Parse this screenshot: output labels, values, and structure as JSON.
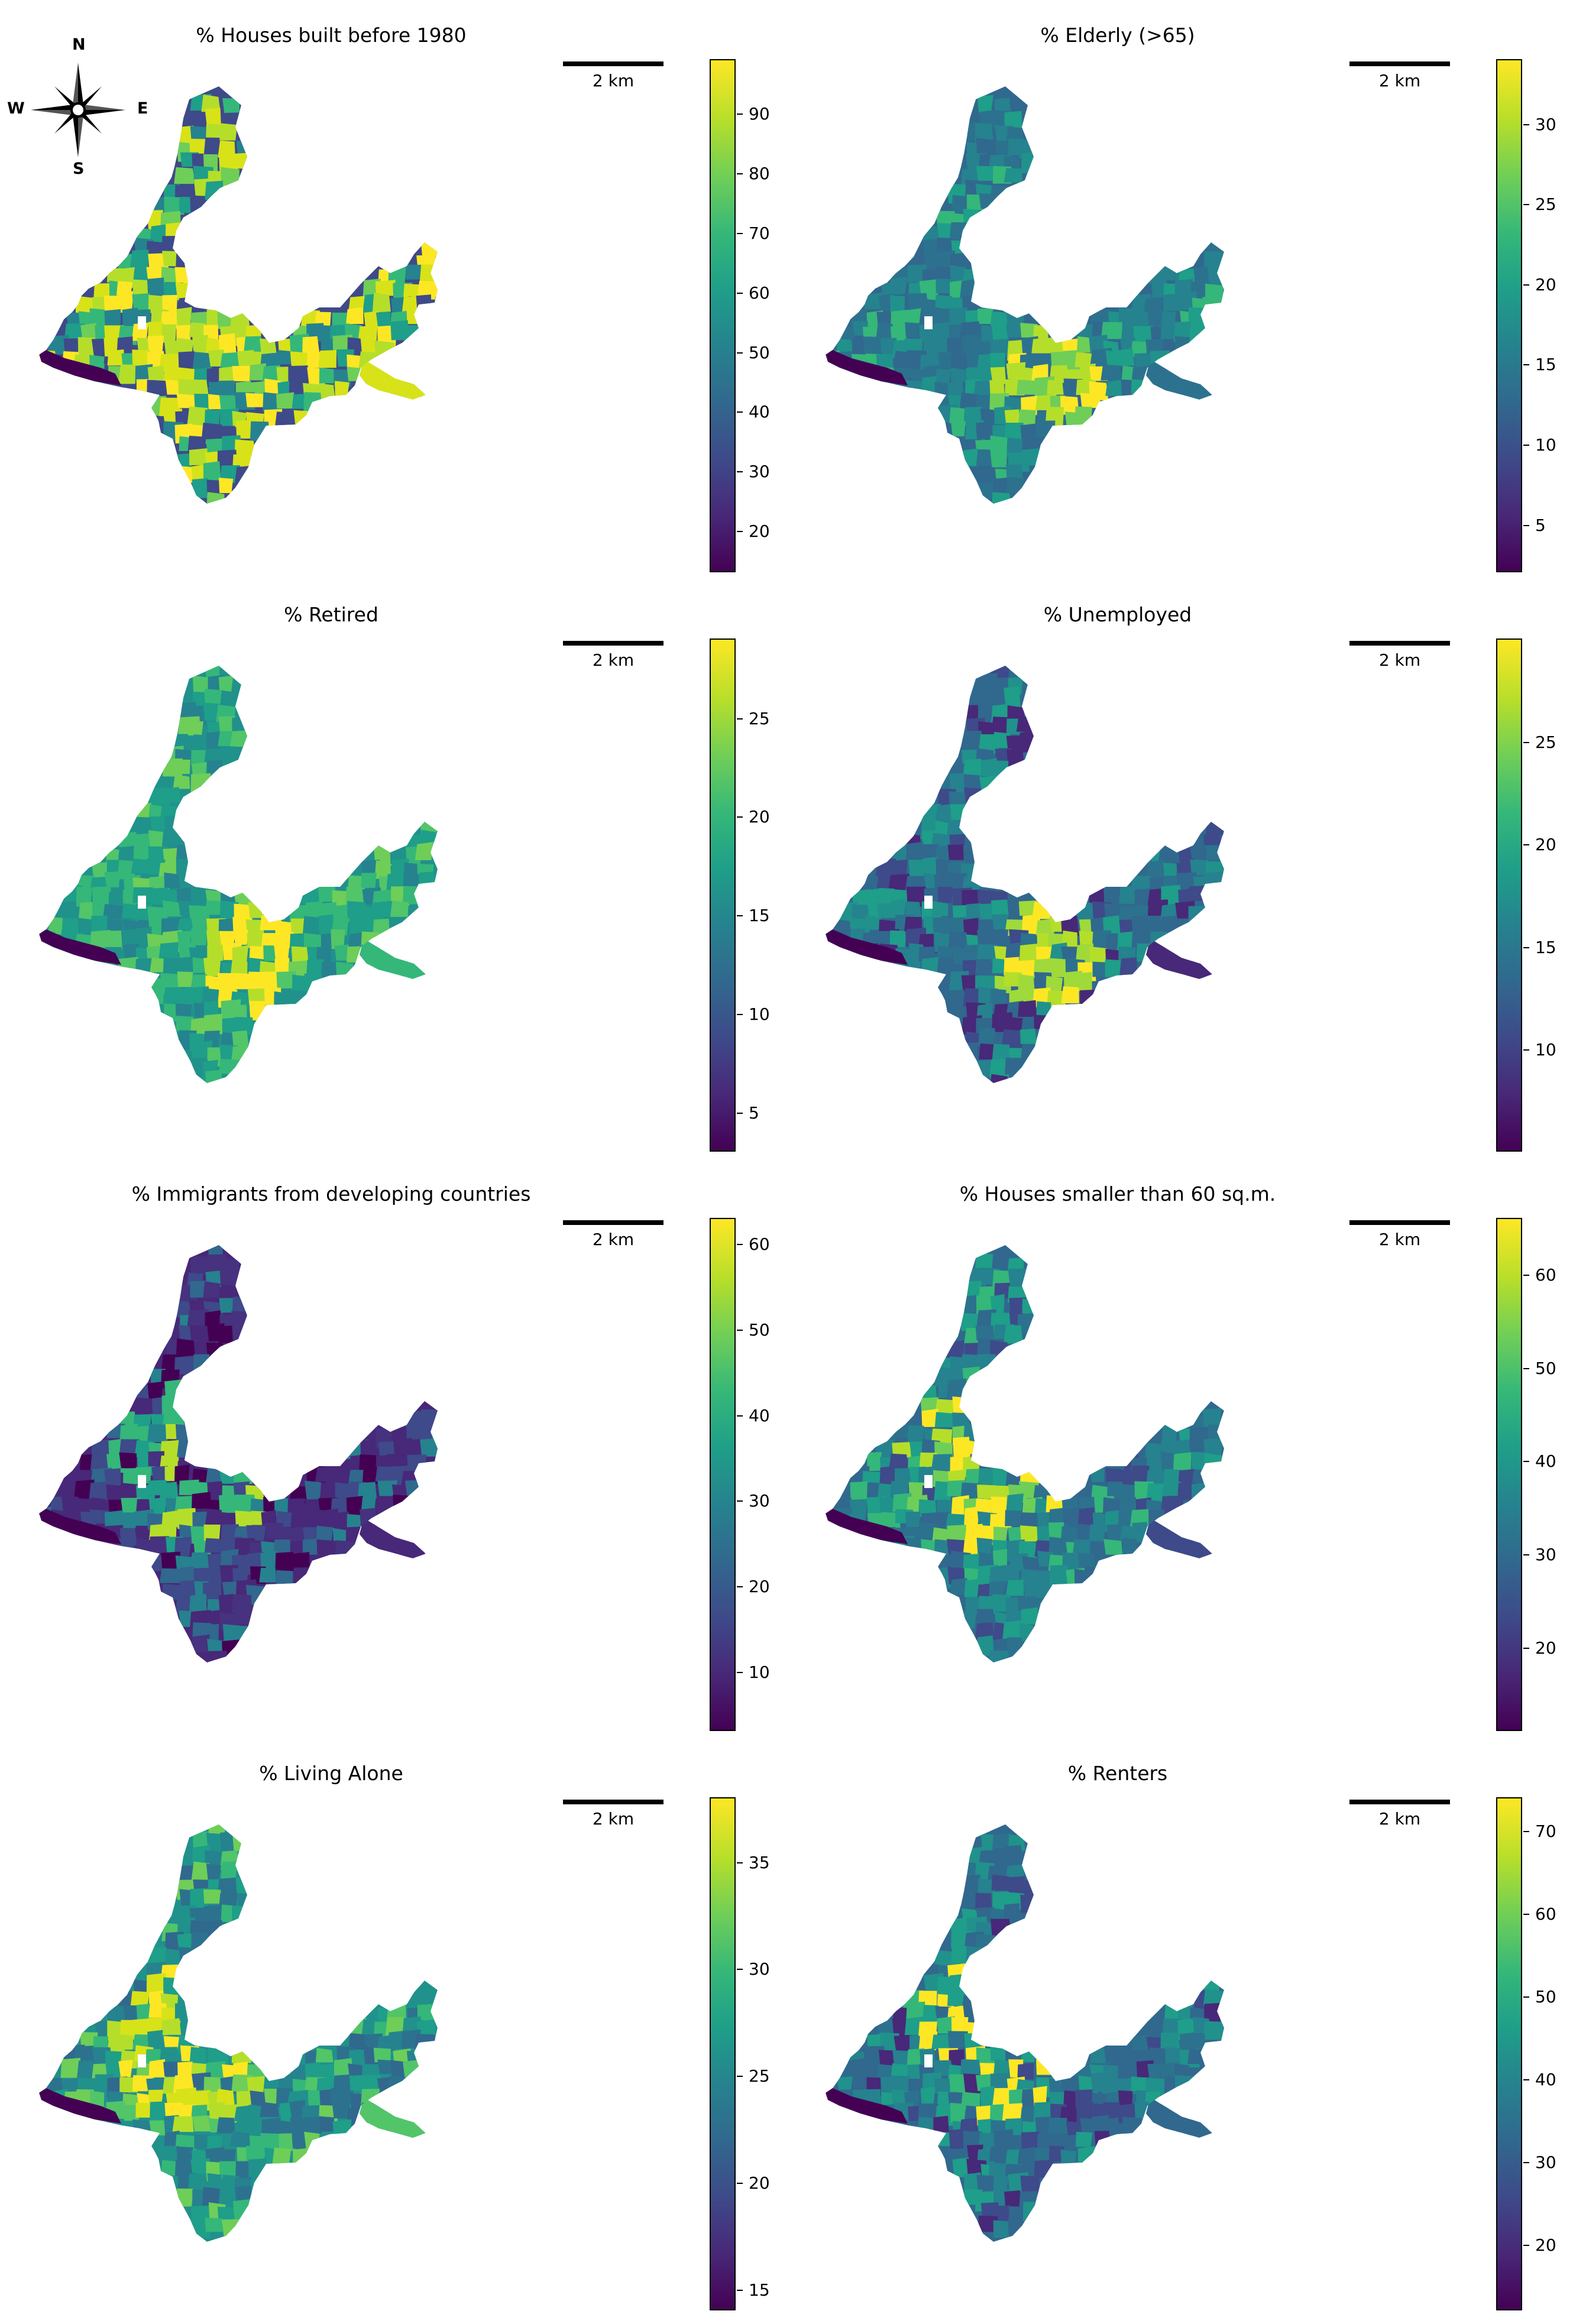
{
  "compass": {
    "north": "N",
    "south": "S",
    "east": "E",
    "west": "W",
    "icon": "compass-rose-icon"
  },
  "colormap": {
    "name": "viridis",
    "stops": [
      "#440154",
      "#482878",
      "#3e4a89",
      "#31688e",
      "#26828e",
      "#1f9e89",
      "#35b779",
      "#6ece58",
      "#b5de2b",
      "#fde725"
    ]
  },
  "map_style": {
    "exclusion_color": "#ffffff",
    "low_color": "#440154"
  },
  "panels": [
    {
      "title": "% Houses built before 1980",
      "scale_label": "2 km",
      "colorbar": {
        "min": 13,
        "max": 99,
        "ticks": [
          20,
          30,
          40,
          50,
          60,
          70,
          80,
          90
        ]
      },
      "palette": [
        "#3e4a89",
        "#26828e",
        "#1f9e89",
        "#35b779",
        "#6ece58",
        "#b5de2b",
        "#d8e219",
        "#fde725"
      ],
      "hotspots": [
        "#fde725",
        "#d8e219",
        "#b5de2b"
      ],
      "hot_zones": "center"
    },
    {
      "title": "% Elderly (>65)",
      "scale_label": "2 km",
      "colorbar": {
        "min": 2,
        "max": 34,
        "ticks": [
          5,
          10,
          15,
          20,
          25,
          30
        ]
      },
      "palette": [
        "#31688e",
        "#2c728e",
        "#26828e",
        "#21918c",
        "#1f9e89",
        "#26828e",
        "#2c728e",
        "#35b779"
      ],
      "hotspots": [
        "#fde725",
        "#6ece58",
        "#b5de2b"
      ],
      "hot_zones": "south"
    },
    {
      "title": "% Retired",
      "scale_label": "2 km",
      "colorbar": {
        "min": 3,
        "max": 29,
        "ticks": [
          5,
          10,
          15,
          20,
          25
        ]
      },
      "palette": [
        "#21918c",
        "#1f9e89",
        "#35b779",
        "#6ece58",
        "#1f9e89",
        "#26828e",
        "#35b779",
        "#52c569"
      ],
      "hotspots": [
        "#fde725",
        "#b5de2b"
      ],
      "hot_zones": "south"
    },
    {
      "title": "% Unemployed",
      "scale_label": "2 km",
      "colorbar": {
        "min": 5,
        "max": 30,
        "ticks": [
          10,
          15,
          20,
          25
        ]
      },
      "palette": [
        "#31688e",
        "#2c728e",
        "#26828e",
        "#3e4a89",
        "#21918c",
        "#31688e",
        "#482878",
        "#1f9e89"
      ],
      "hotspots": [
        "#9fda3a",
        "#b5de2b",
        "#fde725"
      ],
      "hot_zones": "south"
    },
    {
      "title": "% Immigrants from developing countries",
      "scale_label": "2 km",
      "colorbar": {
        "min": 3,
        "max": 63,
        "ticks": [
          10,
          20,
          30,
          40,
          50,
          60
        ]
      },
      "palette": [
        "#482878",
        "#3e4a89",
        "#440154",
        "#46327e",
        "#31688e",
        "#3e4a89",
        "#482878",
        "#26828e"
      ],
      "hotspots": [
        "#1f9e89",
        "#35b779",
        "#b5de2b"
      ],
      "hot_zones": "center"
    },
    {
      "title": "% Houses smaller than 60 sq.m.",
      "scale_label": "2 km",
      "colorbar": {
        "min": 11,
        "max": 66,
        "ticks": [
          20,
          30,
          40,
          50,
          60
        ]
      },
      "palette": [
        "#31688e",
        "#26828e",
        "#21918c",
        "#1f9e89",
        "#2c728e",
        "#35b779",
        "#3e4a89",
        "#26828e"
      ],
      "hotspots": [
        "#b5de2b",
        "#6ece58",
        "#fde725"
      ],
      "hot_zones": "center"
    },
    {
      "title": "% Living Alone",
      "scale_label": "2 km",
      "colorbar": {
        "min": 14,
        "max": 38,
        "ticks": [
          15,
          20,
          25,
          30,
          35
        ]
      },
      "palette": [
        "#21918c",
        "#1f9e89",
        "#35b779",
        "#26828e",
        "#6ece58",
        "#31688e",
        "#52c569",
        "#2c728e"
      ],
      "hotspots": [
        "#fde725",
        "#d8e219",
        "#b5de2b"
      ],
      "hot_zones": "center"
    },
    {
      "title": "% Renters",
      "scale_label": "2 km",
      "colorbar": {
        "min": 12,
        "max": 74,
        "ticks": [
          20,
          30,
          40,
          50,
          60,
          70
        ]
      },
      "palette": [
        "#31688e",
        "#2c728e",
        "#3e4a89",
        "#26828e",
        "#21918c",
        "#482878",
        "#31688e",
        "#1f9e89"
      ],
      "hotspots": [
        "#fde725",
        "#35b779",
        "#1f9e89"
      ],
      "hot_zones": "center"
    }
  ]
}
